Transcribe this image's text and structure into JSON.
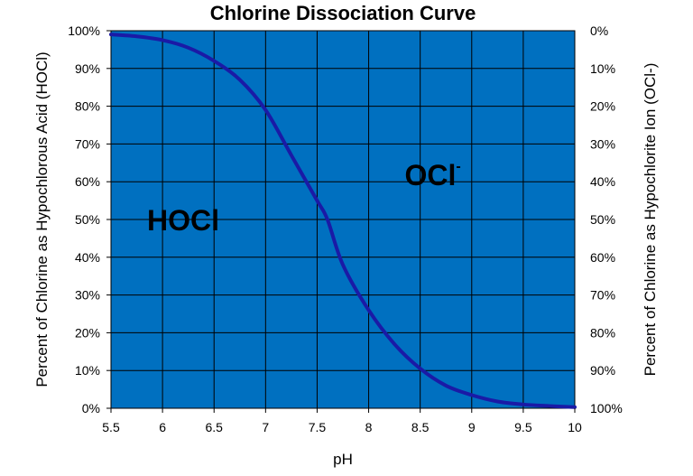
{
  "chart_data": {
    "type": "line",
    "title": "Chlorine Dissociation Curve",
    "xlabel": "pH",
    "ylabel_left": "Percent of Chlorine as Hypochlorous Acid (HOCl)",
    "ylabel_right": "Percent of Chlorine as Hypochlorite Ion (OCl-)",
    "xlim": [
      5.5,
      10
    ],
    "ylim": [
      0,
      100
    ],
    "x_ticks": [
      "5.5",
      "6",
      "6.5",
      "7",
      "7.5",
      "8",
      "8.5",
      "9",
      "9.5",
      "10"
    ],
    "y_ticks_left": [
      "0%",
      "10%",
      "20%",
      "30%",
      "40%",
      "50%",
      "60%",
      "70%",
      "80%",
      "90%",
      "100%"
    ],
    "y_ticks_right": [
      "100%",
      "90%",
      "80%",
      "70%",
      "60%",
      "50%",
      "40%",
      "30%",
      "20%",
      "10%",
      "0%"
    ],
    "grid": true,
    "plot_background": "#0070C0",
    "line_color": "#1A1AA6",
    "annotations": [
      {
        "text": "HOCl",
        "x": 6.2,
        "y": 50
      },
      {
        "text": "OCl",
        "superscript": "-",
        "x": 8.7,
        "y": 62
      }
    ],
    "series": [
      {
        "x": [
          5.5,
          5.75,
          6.0,
          6.25,
          6.5,
          6.75,
          7.0,
          7.25,
          7.5,
          7.6,
          7.75,
          8.0,
          8.25,
          8.5,
          8.75,
          9.0,
          9.25,
          9.5,
          9.75,
          10.0
        ],
        "y": [
          99,
          98.5,
          97.5,
          95.5,
          92,
          87,
          79,
          67,
          55,
          50,
          38,
          26,
          17,
          10.5,
          6,
          3.5,
          1.8,
          1,
          0.6,
          0.3
        ]
      }
    ]
  }
}
